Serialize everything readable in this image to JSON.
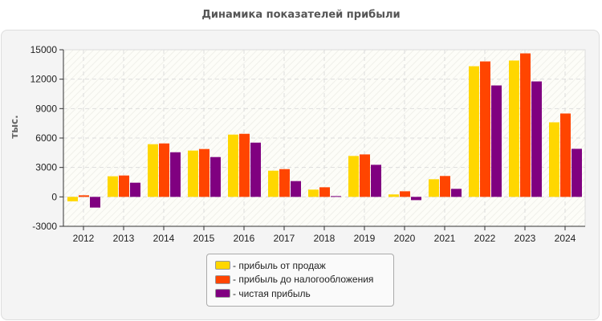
{
  "chart_data": {
    "type": "bar",
    "title": "Динамика показателей прибыли",
    "ylabel": "тыс.",
    "xlabel": "",
    "ylim": [
      -3000,
      15000
    ],
    "yticks": [
      "-3000",
      "0",
      "3000",
      "6000",
      "9000",
      "12000",
      "15000"
    ],
    "grid": true,
    "legend_position": "bottom",
    "categories": [
      "2012",
      "2013",
      "2014",
      "2015",
      "2016",
      "2017",
      "2018",
      "2019",
      "2020",
      "2021",
      "2022",
      "2023",
      "2024"
    ],
    "series": [
      {
        "name": "- прибыль от продаж",
        "color": "#ffd700",
        "values": [
          -450,
          2100,
          5370,
          4720,
          6350,
          2670,
          740,
          4170,
          250,
          1800,
          13320,
          13900,
          7600
        ]
      },
      {
        "name": "- прибыль до налогообложения",
        "color": "#ff4500",
        "values": [
          160,
          2180,
          5450,
          4880,
          6430,
          2830,
          980,
          4330,
          570,
          2130,
          13810,
          14630,
          8500
        ]
      },
      {
        "name": "- чистая прибыль",
        "color": "#800080",
        "values": [
          -1090,
          1445,
          4550,
          4060,
          5530,
          1610,
          80,
          3270,
          -330,
          820,
          11360,
          11770,
          4900
        ]
      }
    ]
  }
}
